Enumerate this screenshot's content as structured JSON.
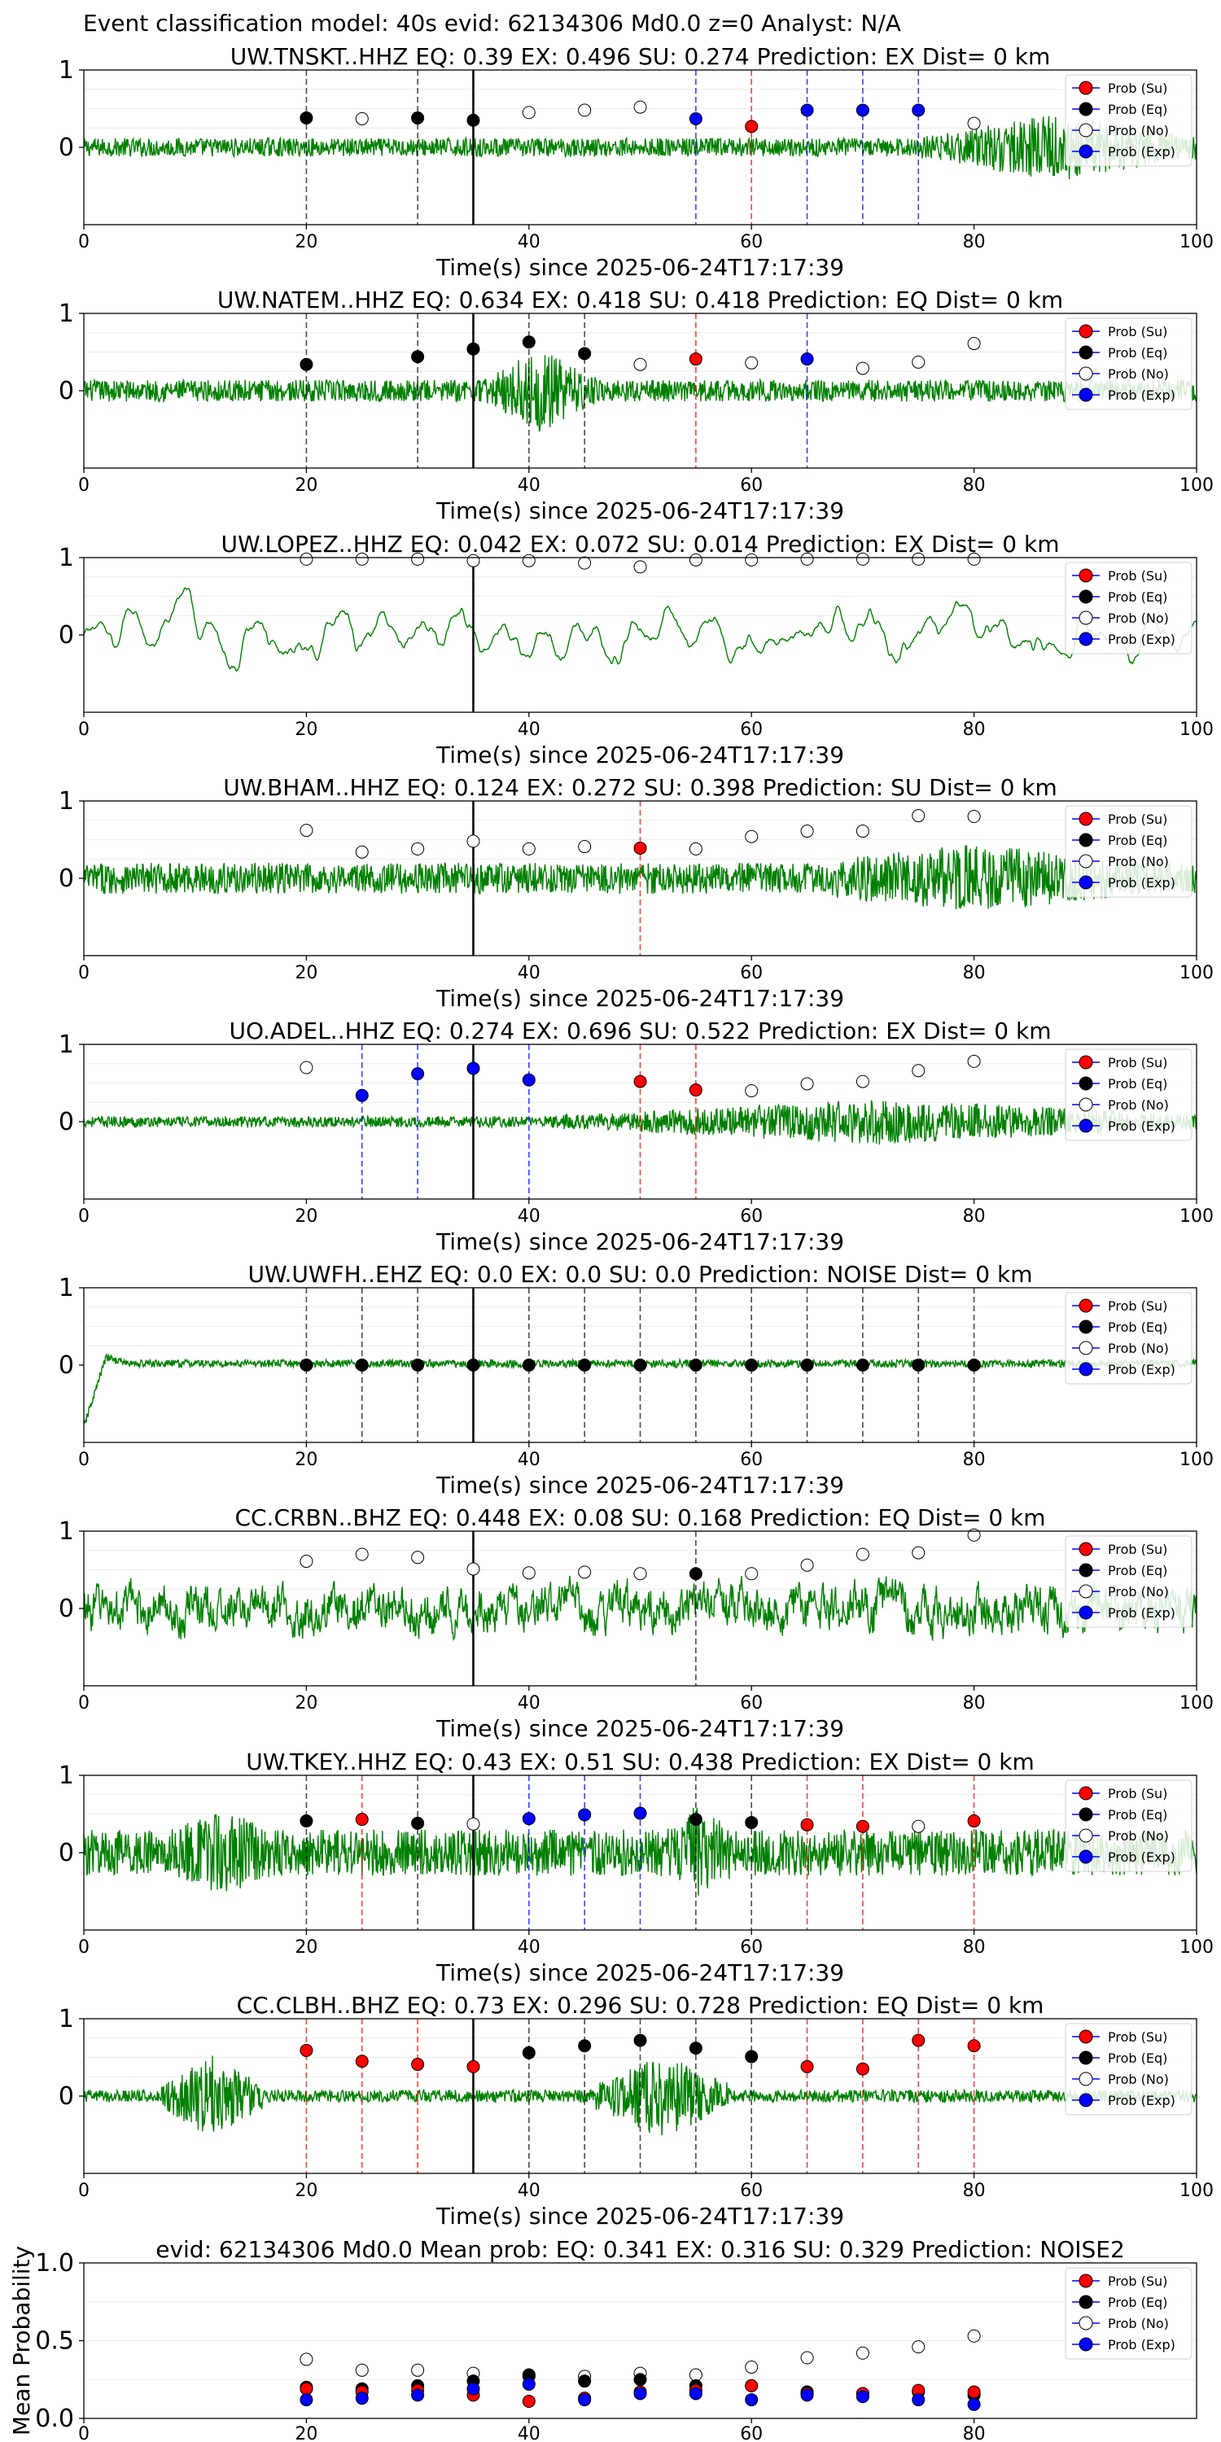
{
  "suptitle": "Event classification model: 40s evid: 62134306 Md0.0 z=0 Analyst: N/A",
  "xlabel": "Time(s) since 2025-06-24T17:17:39",
  "legend": [
    {
      "label": "Prob (Su)",
      "color": "#ff0000"
    },
    {
      "label": "Prob (Eq)",
      "color": "#000000"
    },
    {
      "label": "Prob (No)",
      "color": "#ffffff"
    },
    {
      "label": "Prob (Exp)",
      "color": "#0000ff"
    }
  ],
  "colors": {
    "waveform": "#008000",
    "su": "#ff0000",
    "eq": "#000000",
    "no": "#ffffff",
    "exp": "#0000ff",
    "pick": "#000000"
  },
  "chart_data": [
    {
      "type": "line",
      "title": "UW.TNSKT..HHZ   EQ: 0.39   EX: 0.496   SU: 0.274    Prediction: EX     Dist= 0 km",
      "xlim": [
        0,
        100
      ],
      "ylim": [
        -1,
        1
      ],
      "xticks": [
        "0",
        "20",
        "40",
        "60",
        "80",
        "100"
      ],
      "yticks": [
        "0",
        "1"
      ],
      "pick": 35,
      "wave": {
        "amp": 0.12,
        "burst": [
          [
            75,
            100,
            0.45
          ]
        ],
        "style": "noise"
      },
      "points": [
        {
          "x": 20,
          "y": 0.38,
          "c": "eq"
        },
        {
          "x": 25,
          "y": 0.37,
          "c": "no"
        },
        {
          "x": 30,
          "y": 0.38,
          "c": "eq"
        },
        {
          "x": 35,
          "y": 0.35,
          "c": "eq"
        },
        {
          "x": 40,
          "y": 0.45,
          "c": "no"
        },
        {
          "x": 45,
          "y": 0.48,
          "c": "no"
        },
        {
          "x": 50,
          "y": 0.52,
          "c": "no"
        },
        {
          "x": 55,
          "y": 0.37,
          "c": "exp"
        },
        {
          "x": 60,
          "y": 0.27,
          "c": "su"
        },
        {
          "x": 65,
          "y": 0.48,
          "c": "exp"
        },
        {
          "x": 70,
          "y": 0.48,
          "c": "exp"
        },
        {
          "x": 75,
          "y": 0.48,
          "c": "exp"
        },
        {
          "x": 80,
          "y": 0.31,
          "c": "no"
        }
      ]
    },
    {
      "type": "line",
      "title": "UW.NATEM..HHZ   EQ: 0.634   EX: 0.418   SU: 0.418    Prediction: EQ     Dist= 0 km",
      "xlim": [
        0,
        100
      ],
      "ylim": [
        -1,
        1
      ],
      "xticks": [
        "0",
        "20",
        "40",
        "60",
        "80",
        "100"
      ],
      "yticks": [
        "0",
        "1"
      ],
      "pick": 35,
      "wave": {
        "amp": 0.14,
        "burst": [
          [
            36,
            46,
            0.55
          ]
        ],
        "style": "noise"
      },
      "points": [
        {
          "x": 20,
          "y": 0.34,
          "c": "eq"
        },
        {
          "x": 30,
          "y": 0.44,
          "c": "eq"
        },
        {
          "x": 35,
          "y": 0.54,
          "c": "eq"
        },
        {
          "x": 40,
          "y": 0.63,
          "c": "eq"
        },
        {
          "x": 45,
          "y": 0.48,
          "c": "eq"
        },
        {
          "x": 50,
          "y": 0.34,
          "c": "no"
        },
        {
          "x": 55,
          "y": 0.41,
          "c": "su"
        },
        {
          "x": 60,
          "y": 0.36,
          "c": "no"
        },
        {
          "x": 65,
          "y": 0.41,
          "c": "exp"
        },
        {
          "x": 70,
          "y": 0.29,
          "c": "no"
        },
        {
          "x": 75,
          "y": 0.37,
          "c": "no"
        },
        {
          "x": 80,
          "y": 0.61,
          "c": "no"
        }
      ]
    },
    {
      "type": "line",
      "title": "UW.LOPEZ..HHZ   EQ: 0.042   EX: 0.072   SU: 0.014    Prediction: EX     Dist= 0 km",
      "xlim": [
        0,
        100
      ],
      "ylim": [
        -1,
        1
      ],
      "xticks": [
        "0",
        "20",
        "40",
        "60",
        "80",
        "100"
      ],
      "yticks": [
        "0",
        "1"
      ],
      "pick": 35,
      "wave": {
        "amp": 0.5,
        "burst": [],
        "style": "slow"
      },
      "points": [
        {
          "x": 20,
          "y": 0.98,
          "c": "no"
        },
        {
          "x": 25,
          "y": 0.98,
          "c": "no"
        },
        {
          "x": 30,
          "y": 0.98,
          "c": "no"
        },
        {
          "x": 35,
          "y": 0.96,
          "c": "no"
        },
        {
          "x": 40,
          "y": 0.96,
          "c": "no"
        },
        {
          "x": 45,
          "y": 0.93,
          "c": "no"
        },
        {
          "x": 50,
          "y": 0.88,
          "c": "no"
        },
        {
          "x": 55,
          "y": 0.97,
          "c": "no"
        },
        {
          "x": 60,
          "y": 0.97,
          "c": "no"
        },
        {
          "x": 65,
          "y": 0.98,
          "c": "no"
        },
        {
          "x": 70,
          "y": 0.98,
          "c": "no"
        },
        {
          "x": 75,
          "y": 0.98,
          "c": "no"
        },
        {
          "x": 80,
          "y": 0.98,
          "c": "no"
        }
      ]
    },
    {
      "type": "line",
      "title": "UW.BHAM..HHZ   EQ: 0.124   EX: 0.272   SU: 0.398    Prediction: SU     Dist= 0 km",
      "xlim": [
        0,
        100
      ],
      "ylim": [
        -1,
        1
      ],
      "xticks": [
        "0",
        "20",
        "40",
        "60",
        "80",
        "100"
      ],
      "yticks": [
        "0",
        "1"
      ],
      "pick": 35,
      "wave": {
        "amp": 0.2,
        "burst": [
          [
            60,
            100,
            0.45
          ]
        ],
        "style": "noise"
      },
      "points": [
        {
          "x": 20,
          "y": 0.62,
          "c": "no"
        },
        {
          "x": 25,
          "y": 0.34,
          "c": "no"
        },
        {
          "x": 30,
          "y": 0.38,
          "c": "no"
        },
        {
          "x": 35,
          "y": 0.48,
          "c": "no"
        },
        {
          "x": 40,
          "y": 0.38,
          "c": "no"
        },
        {
          "x": 45,
          "y": 0.41,
          "c": "no"
        },
        {
          "x": 50,
          "y": 0.39,
          "c": "su"
        },
        {
          "x": 55,
          "y": 0.38,
          "c": "no"
        },
        {
          "x": 60,
          "y": 0.54,
          "c": "no"
        },
        {
          "x": 65,
          "y": 0.61,
          "c": "no"
        },
        {
          "x": 70,
          "y": 0.61,
          "c": "no"
        },
        {
          "x": 75,
          "y": 0.81,
          "c": "no"
        },
        {
          "x": 80,
          "y": 0.8,
          "c": "no"
        }
      ]
    },
    {
      "type": "line",
      "title": "UO.ADEL..HHZ   EQ: 0.274   EX: 0.696   SU: 0.522    Prediction: EX     Dist= 0 km",
      "xlim": [
        0,
        100
      ],
      "ylim": [
        -1,
        1
      ],
      "xticks": [
        "0",
        "20",
        "40",
        "60",
        "80",
        "100"
      ],
      "yticks": [
        "0",
        "1"
      ],
      "pick": 35,
      "wave": {
        "amp": 0.07,
        "burst": [
          [
            43,
            100,
            0.3
          ]
        ],
        "style": "noise"
      },
      "points": [
        {
          "x": 20,
          "y": 0.7,
          "c": "no"
        },
        {
          "x": 25,
          "y": 0.34,
          "c": "exp"
        },
        {
          "x": 30,
          "y": 0.62,
          "c": "exp"
        },
        {
          "x": 35,
          "y": 0.69,
          "c": "exp"
        },
        {
          "x": 40,
          "y": 0.54,
          "c": "exp"
        },
        {
          "x": 50,
          "y": 0.52,
          "c": "su"
        },
        {
          "x": 55,
          "y": 0.41,
          "c": "su"
        },
        {
          "x": 60,
          "y": 0.4,
          "c": "no"
        },
        {
          "x": 65,
          "y": 0.49,
          "c": "no"
        },
        {
          "x": 70,
          "y": 0.52,
          "c": "no"
        },
        {
          "x": 75,
          "y": 0.66,
          "c": "no"
        },
        {
          "x": 80,
          "y": 0.78,
          "c": "no"
        }
      ]
    },
    {
      "type": "line",
      "title": "UW.UWFH..EHZ   EQ: 0.0   EX: 0.0   SU: 0.0    Prediction: NOISE    Dist= 0 km",
      "xlim": [
        0,
        100
      ],
      "ylim": [
        -1,
        1
      ],
      "xticks": [
        "0",
        "20",
        "40",
        "60",
        "80",
        "100"
      ],
      "yticks": [
        "0",
        "1"
      ],
      "pick": 35,
      "wave": {
        "amp": 0.05,
        "burst": [],
        "style": "ramp"
      },
      "points": [
        {
          "x": 20,
          "y": 0.0,
          "c": "eq"
        },
        {
          "x": 25,
          "y": 0.0,
          "c": "eq"
        },
        {
          "x": 30,
          "y": 0.0,
          "c": "eq"
        },
        {
          "x": 35,
          "y": 0.0,
          "c": "eq"
        },
        {
          "x": 40,
          "y": 0.0,
          "c": "eq"
        },
        {
          "x": 45,
          "y": 0.0,
          "c": "eq"
        },
        {
          "x": 50,
          "y": 0.0,
          "c": "eq"
        },
        {
          "x": 55,
          "y": 0.0,
          "c": "eq"
        },
        {
          "x": 60,
          "y": 0.0,
          "c": "eq"
        },
        {
          "x": 65,
          "y": 0.0,
          "c": "eq"
        },
        {
          "x": 70,
          "y": 0.0,
          "c": "eq"
        },
        {
          "x": 75,
          "y": 0.0,
          "c": "eq"
        },
        {
          "x": 80,
          "y": 0.0,
          "c": "eq"
        }
      ]
    },
    {
      "type": "line",
      "title": "CC.CRBN..BHZ   EQ: 0.448   EX: 0.08   SU: 0.168    Prediction: EQ     Dist= 0 km",
      "xlim": [
        0,
        100
      ],
      "ylim": [
        -1,
        1
      ],
      "xticks": [
        "0",
        "20",
        "40",
        "60",
        "80",
        "100"
      ],
      "yticks": [
        "0",
        "1"
      ],
      "pick": 35,
      "wave": {
        "amp": 0.35,
        "burst": [],
        "style": "slownoise"
      },
      "points": [
        {
          "x": 20,
          "y": 0.61,
          "c": "no"
        },
        {
          "x": 25,
          "y": 0.7,
          "c": "no"
        },
        {
          "x": 30,
          "y": 0.66,
          "c": "no"
        },
        {
          "x": 35,
          "y": 0.51,
          "c": "no"
        },
        {
          "x": 40,
          "y": 0.46,
          "c": "no"
        },
        {
          "x": 45,
          "y": 0.47,
          "c": "no"
        },
        {
          "x": 50,
          "y": 0.45,
          "c": "no"
        },
        {
          "x": 55,
          "y": 0.45,
          "c": "eq"
        },
        {
          "x": 60,
          "y": 0.45,
          "c": "no"
        },
        {
          "x": 65,
          "y": 0.56,
          "c": "no"
        },
        {
          "x": 70,
          "y": 0.7,
          "c": "no"
        },
        {
          "x": 75,
          "y": 0.72,
          "c": "no"
        },
        {
          "x": 80,
          "y": 0.95,
          "c": "no"
        }
      ]
    },
    {
      "type": "line",
      "title": "UW.TKEY..HHZ   EQ: 0.43   EX: 0.51   SU: 0.438    Prediction: EX     Dist= 0 km",
      "xlim": [
        0,
        100
      ],
      "ylim": [
        -1,
        1
      ],
      "xticks": [
        "0",
        "20",
        "40",
        "60",
        "80",
        "100"
      ],
      "yticks": [
        "0",
        "1"
      ],
      "pick": 35,
      "wave": {
        "amp": 0.3,
        "burst": [
          [
            5,
            20,
            0.55
          ],
          [
            50,
            60,
            0.6
          ]
        ],
        "style": "noise"
      },
      "points": [
        {
          "x": 20,
          "y": 0.41,
          "c": "eq"
        },
        {
          "x": 25,
          "y": 0.43,
          "c": "su"
        },
        {
          "x": 30,
          "y": 0.38,
          "c": "eq"
        },
        {
          "x": 35,
          "y": 0.37,
          "c": "no"
        },
        {
          "x": 40,
          "y": 0.44,
          "c": "exp"
        },
        {
          "x": 45,
          "y": 0.49,
          "c": "exp"
        },
        {
          "x": 50,
          "y": 0.51,
          "c": "exp"
        },
        {
          "x": 55,
          "y": 0.43,
          "c": "eq"
        },
        {
          "x": 60,
          "y": 0.39,
          "c": "eq"
        },
        {
          "x": 65,
          "y": 0.36,
          "c": "su"
        },
        {
          "x": 70,
          "y": 0.34,
          "c": "su"
        },
        {
          "x": 75,
          "y": 0.34,
          "c": "no"
        },
        {
          "x": 80,
          "y": 0.41,
          "c": "su"
        }
      ]
    },
    {
      "type": "line",
      "title": "CC.CLBH..BHZ   EQ: 0.73   EX: 0.296   SU: 0.728    Prediction: EQ     Dist= 0 km",
      "xlim": [
        0,
        100
      ],
      "ylim": [
        -1,
        1
      ],
      "xticks": [
        "0",
        "20",
        "40",
        "60",
        "80",
        "100"
      ],
      "yticks": [
        "0",
        "1"
      ],
      "pick": 35,
      "wave": {
        "amp": 0.08,
        "burst": [
          [
            7,
            16,
            0.55
          ],
          [
            46,
            58,
            0.55
          ]
        ],
        "style": "noise"
      },
      "points": [
        {
          "x": 20,
          "y": 0.59,
          "c": "su"
        },
        {
          "x": 25,
          "y": 0.45,
          "c": "su"
        },
        {
          "x": 30,
          "y": 0.41,
          "c": "su"
        },
        {
          "x": 35,
          "y": 0.38,
          "c": "su"
        },
        {
          "x": 40,
          "y": 0.56,
          "c": "eq"
        },
        {
          "x": 45,
          "y": 0.65,
          "c": "eq"
        },
        {
          "x": 50,
          "y": 0.72,
          "c": "eq"
        },
        {
          "x": 55,
          "y": 0.62,
          "c": "eq"
        },
        {
          "x": 60,
          "y": 0.51,
          "c": "eq"
        },
        {
          "x": 65,
          "y": 0.38,
          "c": "su"
        },
        {
          "x": 70,
          "y": 0.35,
          "c": "su"
        },
        {
          "x": 75,
          "y": 0.72,
          "c": "su"
        },
        {
          "x": 80,
          "y": 0.65,
          "c": "su"
        }
      ]
    },
    {
      "type": "scatter",
      "title": "evid: 62134306  Md0.0   Mean prob:    EQ: 0.341  EX: 0.316  SU: 0.329   Prediction: NOISE2",
      "ylabel": "Mean Probability",
      "xlim": [
        0,
        100
      ],
      "ylim": [
        0,
        1
      ],
      "xticks": [
        "0",
        "20",
        "40",
        "60",
        "80"
      ],
      "yticks": [
        "0.0",
        "0.5",
        "1.0"
      ],
      "x": [
        20,
        25,
        30,
        35,
        40,
        45,
        50,
        55,
        60,
        65,
        70,
        75,
        80
      ],
      "series": [
        {
          "key": "no",
          "values": [
            0.38,
            0.31,
            0.31,
            0.29,
            0.27,
            0.27,
            0.29,
            0.28,
            0.33,
            0.39,
            0.42,
            0.46,
            0.53
          ]
        },
        {
          "key": "eq",
          "values": [
            0.2,
            0.19,
            0.21,
            0.24,
            0.28,
            0.24,
            0.25,
            0.21,
            0.21,
            0.17,
            0.16,
            0.17,
            0.15
          ]
        },
        {
          "key": "su",
          "values": [
            0.19,
            0.17,
            0.18,
            0.15,
            0.11,
            0.13,
            0.17,
            0.18,
            0.21,
            0.16,
            0.16,
            0.18,
            0.17
          ]
        },
        {
          "key": "exp",
          "values": [
            0.12,
            0.13,
            0.15,
            0.19,
            0.22,
            0.12,
            0.16,
            0.16,
            0.12,
            0.15,
            0.14,
            0.12,
            0.09
          ]
        }
      ]
    }
  ]
}
